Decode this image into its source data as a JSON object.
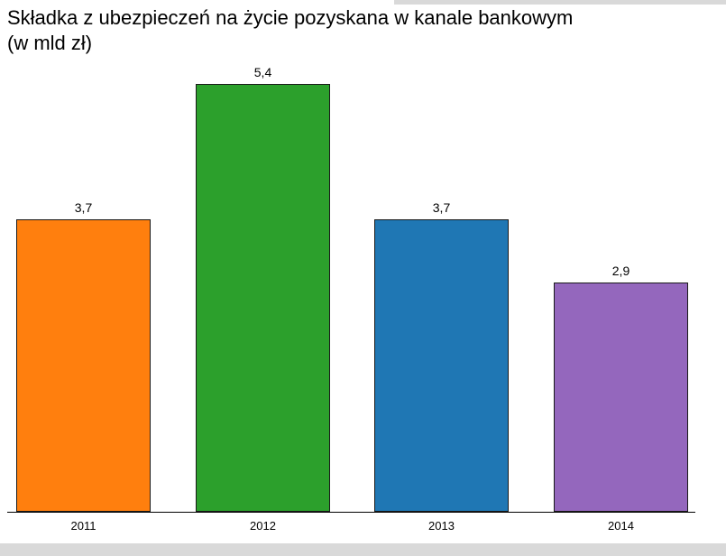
{
  "chart_data": {
    "type": "bar",
    "title": "Składka z ubezpieczeń na życie pozyskana w kanale bankowym",
    "subtitle": "(w mld zł)",
    "categories": [
      "2011",
      "2012",
      "2013",
      "2014"
    ],
    "values": [
      3.7,
      5.4,
      3.7,
      2.9
    ],
    "value_labels": [
      "3,7",
      "5,4",
      "3,7",
      "2,9"
    ],
    "colors": [
      "#ff7f0e",
      "#2ca02c",
      "#1f77b4",
      "#9467bd"
    ],
    "bar_edge_color": "#1a1a1a",
    "axis_color": "#000000",
    "ylim": [
      0,
      6
    ],
    "grid": false,
    "legend": false,
    "xlabel": "",
    "ylabel": ""
  }
}
